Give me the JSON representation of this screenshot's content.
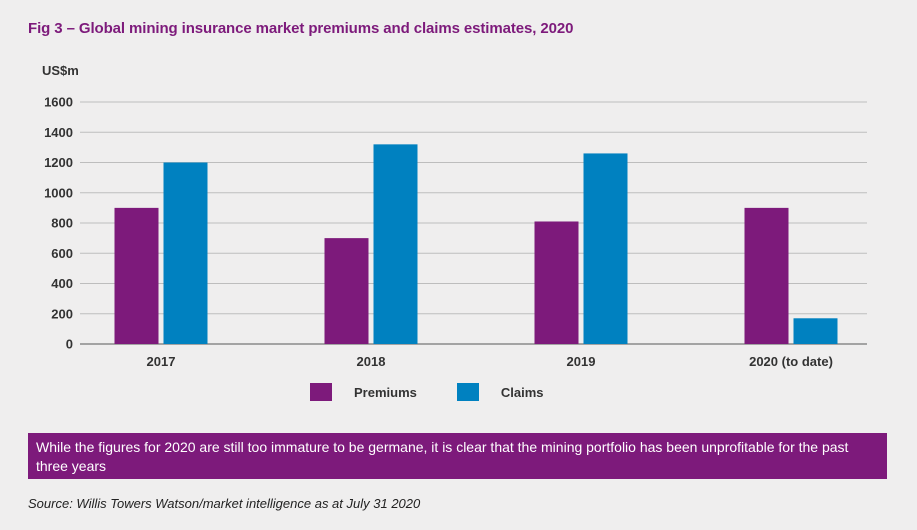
{
  "figure": {
    "title": "Fig 3 – Global mining insurance market premiums and claims estimates, 2020",
    "note": "While the figures for 2020 are still too immature to be germane, it is clear that the mining portfolio has been unprofitable for the past three years",
    "source": "Source: Willis Towers Watson/market intelligence as at July 31 2020"
  },
  "colors": {
    "premiums": "#7d1a7b",
    "claims": "#0081c0",
    "grid": "#bdbdbd",
    "axis": "#8a8a8a",
    "text": "#333333"
  },
  "chart_data": {
    "type": "bar",
    "title": "",
    "ylabel": "US$m",
    "xlabel": "",
    "categories": [
      "2017",
      "2018",
      "2019",
      "2020 (to date)"
    ],
    "series": [
      {
        "name": "Premiums",
        "values": [
          900,
          700,
          810,
          900
        ]
      },
      {
        "name": "Claims",
        "values": [
          1200,
          1320,
          1260,
          170
        ]
      }
    ],
    "ylim": [
      0,
      1600
    ],
    "yticks": [
      0,
      200,
      400,
      600,
      800,
      1000,
      1200,
      1400,
      1600
    ],
    "grid": true,
    "legend": "bottom-center"
  }
}
